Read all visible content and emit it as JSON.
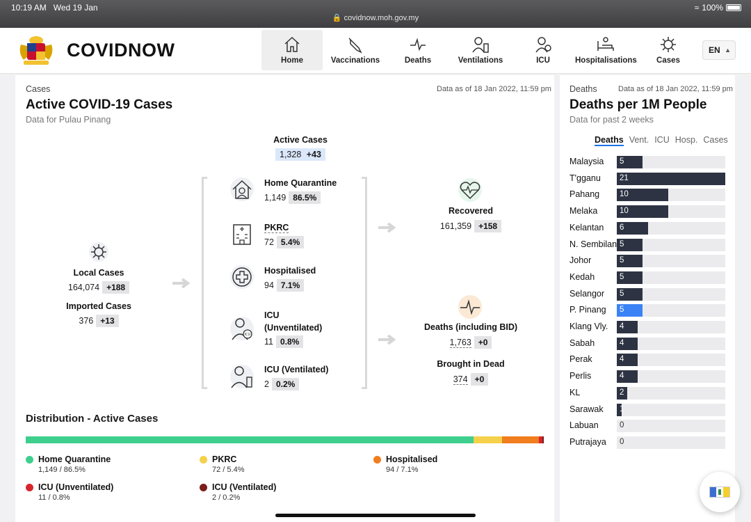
{
  "status": {
    "time": "10:19 AM",
    "date": "Wed 19 Jan",
    "url": "covidnow.moh.gov.my",
    "battery": "100%"
  },
  "nav": {
    "brand": "COVIDNOW",
    "items": [
      {
        "label": "Home",
        "icon": "house-icon"
      },
      {
        "label": "Vaccinations",
        "icon": "syringe-icon"
      },
      {
        "label": "Deaths",
        "icon": "pulse-icon"
      },
      {
        "label": "Ventilations",
        "icon": "ventilator-icon"
      },
      {
        "label": "ICU",
        "icon": "icu-icon"
      },
      {
        "label": "Hospitalisations",
        "icon": "hospital-bed-icon"
      },
      {
        "label": "Cases",
        "icon": "virus-icon"
      }
    ],
    "lang": "EN"
  },
  "cases": {
    "section": "Cases",
    "asof": "Data as of 18 Jan 2022, 11:59 pm",
    "title": "Active COVID-19 Cases",
    "subtitle": "Data for Pulau Pinang",
    "active": {
      "label": "Active Cases",
      "value": "1,328",
      "delta": "+43"
    },
    "local": {
      "label": "Local Cases",
      "value": "164,074",
      "delta": "+188"
    },
    "imported": {
      "label": "Imported Cases",
      "value": "376",
      "delta": "+13"
    },
    "breakdown": [
      {
        "label": "Home Quarantine",
        "value": "1,149",
        "pct": "86.5%"
      },
      {
        "label": "PKRC",
        "value": "72",
        "pct": "5.4%"
      },
      {
        "label": "Hospitalised",
        "value": "94",
        "pct": "7.1%"
      },
      {
        "label": "ICU\n(Unventilated)",
        "value": "11",
        "pct": "0.8%"
      },
      {
        "label": "ICU (Ventilated)",
        "value": "2",
        "pct": "0.2%"
      }
    ],
    "recovered": {
      "label": "Recovered",
      "value": "161,359",
      "delta": "+158"
    },
    "deaths": {
      "label": "Deaths (including BID)",
      "value": "1,763",
      "delta": "+0"
    },
    "bid": {
      "label": "Brought in Dead",
      "value": "374",
      "delta": "+0"
    }
  },
  "distribution": {
    "title": "Distribution - Active Cases",
    "segments": [
      {
        "label": "Home Quarantine",
        "value": "1,149 / 86.5%",
        "share": 86.5,
        "color": "#3ecf8e"
      },
      {
        "label": "PKRC",
        "value": "72 / 5.4%",
        "share": 5.4,
        "color": "#f5d04a"
      },
      {
        "label": "Hospitalised",
        "value": "94 / 7.1%",
        "share": 7.1,
        "color": "#f07d1e"
      },
      {
        "label": "ICU (Unventilated)",
        "value": "11 / 0.8%",
        "share": 0.8,
        "color": "#d6262b"
      },
      {
        "label": "ICU (Ventilated)",
        "value": "2 / 0.2%",
        "share": 0.2,
        "color": "#7b1d1d"
      }
    ]
  },
  "deaths_panel": {
    "section": "Deaths",
    "asof": "Data as of 18 Jan 2022, 11:59 pm",
    "title": "Deaths per 1M People",
    "subtitle": "Data for past 2 weeks",
    "tabs": [
      "Deaths",
      "Vent.",
      "ICU",
      "Hosp.",
      "Cases"
    ],
    "active_tab": "Deaths"
  },
  "chart_data": {
    "type": "bar",
    "orientation": "horizontal",
    "title": "Deaths per 1M People",
    "categories": [
      "Malaysia",
      "T'gganu",
      "Pahang",
      "Melaka",
      "Kelantan",
      "N. Sembilan",
      "Johor",
      "Kedah",
      "Selangor",
      "P. Pinang",
      "Klang Vly.",
      "Sabah",
      "Perak",
      "Perlis",
      "KL",
      "Sarawak",
      "Labuan",
      "Putrajaya"
    ],
    "values": [
      5,
      21,
      10,
      10,
      6,
      5,
      5,
      5,
      5,
      5,
      4,
      4,
      4,
      4,
      2,
      1,
      0,
      0
    ],
    "highlight": "P. Pinang",
    "highlight_color": "#3b82f6",
    "bar_color": "#2d3342",
    "xlim": [
      0,
      21
    ],
    "grid": false
  }
}
